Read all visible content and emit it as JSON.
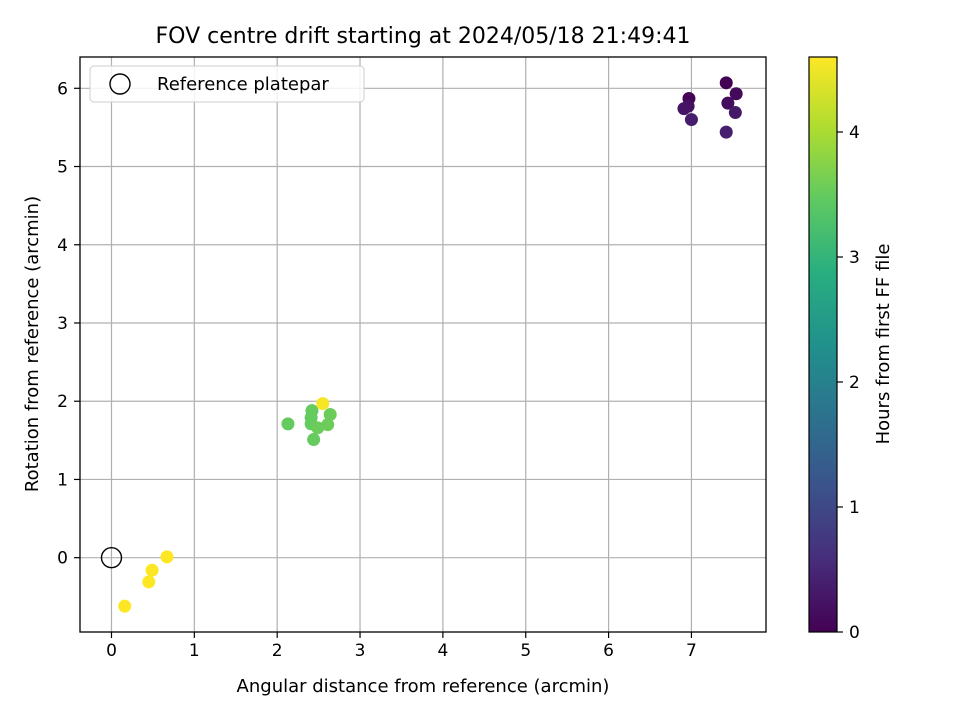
{
  "chart_data": {
    "type": "scatter",
    "title": "FOV centre drift starting at 2024/05/18 21:49:41",
    "xlabel": "Angular distance from reference (arcmin)",
    "ylabel": "Rotation from reference (arcmin)",
    "xlim": [
      -0.38,
      7.9
    ],
    "ylim": [
      -0.95,
      6.4
    ],
    "x_ticks": [
      "0",
      "1",
      "2",
      "3",
      "4",
      "5",
      "6",
      "7"
    ],
    "y_ticks": [
      "0",
      "1",
      "2",
      "3",
      "4",
      "5",
      "6"
    ],
    "grid": true,
    "legend": {
      "position": "top-left",
      "entries": [
        "Reference platepar"
      ]
    },
    "reference_point": {
      "name": "Reference platepar",
      "x": 0,
      "y": 0
    },
    "colorbar": {
      "label": "Hours from first FF file",
      "colormap": "viridis",
      "range": [
        0,
        4.6
      ],
      "ticks": [
        "0",
        "1",
        "2",
        "3",
        "4"
      ]
    },
    "points": [
      {
        "x": 7.42,
        "y": 6.07,
        "hours": 0.0
      },
      {
        "x": 6.97,
        "y": 5.87,
        "hours": 0.05
      },
      {
        "x": 7.54,
        "y": 5.93,
        "hours": 0.1
      },
      {
        "x": 7.44,
        "y": 5.81,
        "hours": 0.15
      },
      {
        "x": 6.96,
        "y": 5.77,
        "hours": 0.2
      },
      {
        "x": 6.91,
        "y": 5.74,
        "hours": 0.25
      },
      {
        "x": 7.53,
        "y": 5.69,
        "hours": 0.3
      },
      {
        "x": 7.0,
        "y": 5.6,
        "hours": 0.35
      },
      {
        "x": 7.42,
        "y": 5.44,
        "hours": 0.4
      },
      {
        "x": 2.42,
        "y": 1.88,
        "hours": 3.5
      },
      {
        "x": 2.41,
        "y": 1.79,
        "hours": 3.5
      },
      {
        "x": 2.64,
        "y": 1.83,
        "hours": 3.55
      },
      {
        "x": 2.13,
        "y": 1.71,
        "hours": 3.5
      },
      {
        "x": 2.41,
        "y": 1.71,
        "hours": 3.5
      },
      {
        "x": 2.49,
        "y": 1.66,
        "hours": 3.55
      },
      {
        "x": 2.61,
        "y": 1.7,
        "hours": 3.55
      },
      {
        "x": 2.44,
        "y": 1.51,
        "hours": 3.5
      },
      {
        "x": 2.55,
        "y": 1.97,
        "hours": 4.55
      },
      {
        "x": 0.67,
        "y": 0.01,
        "hours": 4.6
      },
      {
        "x": 0.49,
        "y": -0.16,
        "hours": 4.6
      },
      {
        "x": 0.45,
        "y": -0.31,
        "hours": 4.6
      },
      {
        "x": 0.16,
        "y": -0.62,
        "hours": 4.6
      }
    ]
  }
}
